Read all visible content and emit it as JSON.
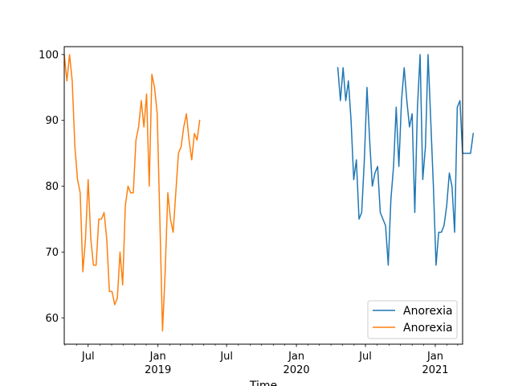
{
  "chart_data": {
    "type": "line",
    "xlabel": "Time",
    "ylabel": "",
    "title": "",
    "ylim": [
      56,
      101.2
    ],
    "xlim": [
      "2018-04-29",
      "2021-03-14"
    ],
    "yticks": [
      60,
      70,
      80,
      90,
      100
    ],
    "xticks": [
      {
        "date": "2018-07-01",
        "label": "Jul",
        "sublabel": ""
      },
      {
        "date": "2019-01-01",
        "label": "Jan",
        "sublabel": "2019"
      },
      {
        "date": "2019-07-01",
        "label": "Jul",
        "sublabel": ""
      },
      {
        "date": "2020-01-01",
        "label": "Jan",
        "sublabel": "2020"
      },
      {
        "date": "2020-07-01",
        "label": "Jul",
        "sublabel": ""
      },
      {
        "date": "2021-01-01",
        "label": "Jan",
        "sublabel": "2021"
      }
    ],
    "legend_position": "lower-right",
    "grid": false,
    "series": [
      {
        "name": "Anorexia",
        "color": "#1f77b4",
        "start": "2020-04-19",
        "step_days": 7,
        "values": [
          98,
          93,
          98,
          93,
          96,
          90,
          81,
          84,
          75,
          76,
          84,
          95,
          87,
          80,
          82,
          83,
          76,
          75,
          74,
          68,
          78,
          83,
          92,
          83,
          93,
          98,
          93,
          89,
          91,
          76,
          92,
          100,
          81,
          86,
          100,
          90,
          80,
          68,
          73,
          73,
          74,
          77,
          82,
          80,
          73,
          92,
          93,
          85,
          85,
          85,
          85,
          88
        ]
      },
      {
        "name": "Anorexia",
        "color": "#ff7f0e",
        "start": "2018-04-29",
        "step_days": 7,
        "values": [
          100,
          96,
          100,
          96,
          86,
          81,
          79,
          67,
          72,
          81,
          72,
          68,
          68,
          75,
          75,
          76,
          72,
          64,
          64,
          62,
          63,
          70,
          65,
          77,
          80,
          79,
          79,
          87,
          89,
          93,
          89,
          94,
          80,
          97,
          95,
          91,
          75,
          58,
          67,
          79,
          75,
          73,
          79,
          85,
          86,
          89,
          91,
          87,
          84,
          88,
          87,
          90
        ]
      }
    ]
  }
}
